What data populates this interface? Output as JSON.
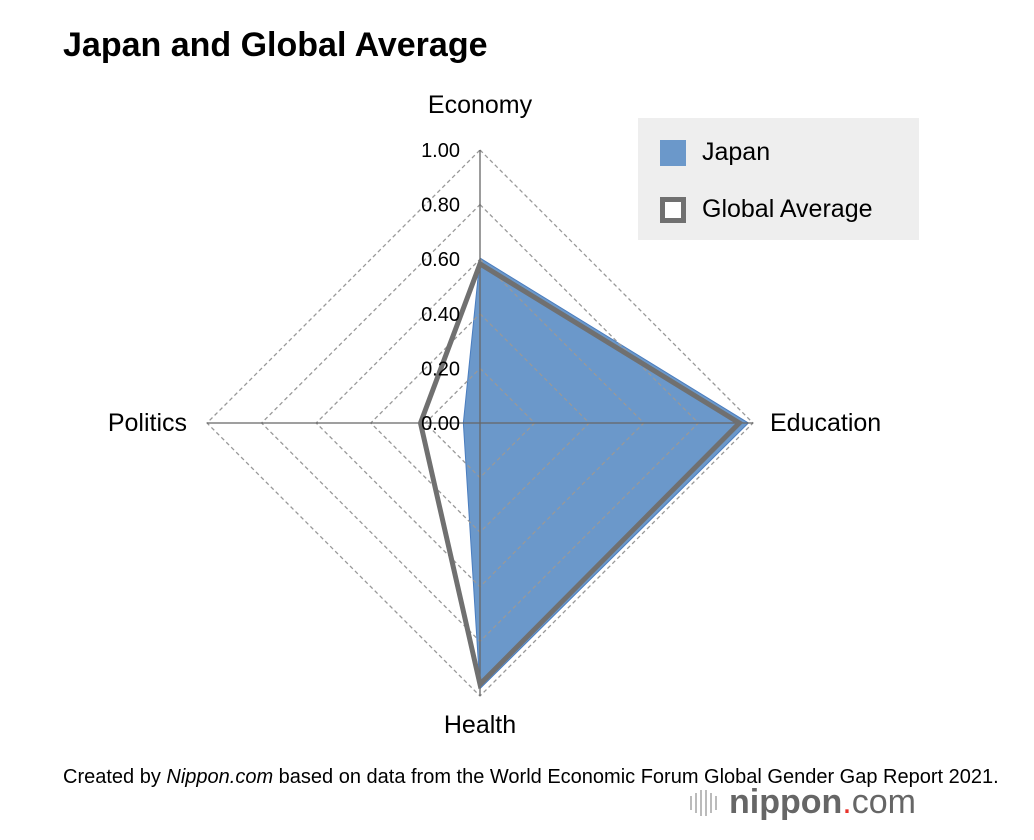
{
  "chart_data": {
    "type": "radar",
    "title": "Japan and Global Average",
    "axes": [
      "Economy",
      "Education",
      "Health",
      "Politics"
    ],
    "tick_labels": [
      "0.00",
      "0.20",
      "0.40",
      "0.60",
      "0.80",
      "1.00"
    ],
    "range": [
      0,
      1
    ],
    "grid": true,
    "legend_placement": "top-right",
    "series": [
      {
        "name": "Japan",
        "values": [
          0.604,
          0.983,
          0.973,
          0.061
        ],
        "color": "#6b98ca",
        "style": "filled"
      },
      {
        "name": "Global Average",
        "values": [
          0.583,
          0.95,
          0.957,
          0.218
        ],
        "color": "#707070",
        "style": "outline"
      }
    ]
  },
  "caption": {
    "prefix": "Created by ",
    "source_italic": "Nippon.com",
    "rest": " based on data from the World Economic Forum Global Gender Gap Report 2021."
  },
  "logo": {
    "text": "nippon.com",
    "accent": "#e8322b"
  }
}
